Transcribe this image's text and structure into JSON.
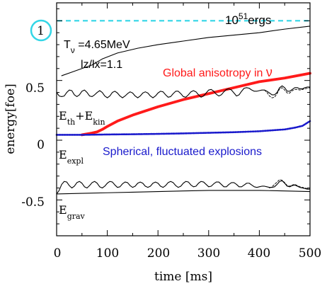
{
  "chart_data": {
    "type": "line",
    "xlabel": "time [ms]",
    "ylabel": "energy[foe]",
    "xlim": [
      0,
      500
    ],
    "ylim": [
      -0.8,
      1.15
    ],
    "x_ticks": [
      0,
      100,
      200,
      300,
      400,
      500
    ],
    "y_ticks": [
      {
        "value": 1,
        "label": "1"
      },
      {
        "value": 0.5,
        "label": "0.5"
      },
      {
        "value": 0,
        "label": "0"
      },
      {
        "value": -0.5,
        "label": "-0.5"
      }
    ],
    "grid": false,
    "legend": "none",
    "colors": {
      "reference": "#33d6e6",
      "anisotropy": "#ff1a1a",
      "spherical": "#1a1acc",
      "black": "#000000"
    },
    "reference_line": {
      "value": 1.0,
      "label_base": "10",
      "label_exp": "51",
      "label_unit": "ergs"
    },
    "annotations": {
      "t_nu_main": "T",
      "t_nu_sub": "ν",
      "t_nu_value": " =4.65MeV",
      "lz_lx": "lz/lx=1.1",
      "global_text": "Global anisotropy in ",
      "global_nu": "ν",
      "spherical_text": "Spherical, fluctuated explosions",
      "eth_main": "E",
      "eth_sub1": "th",
      "eth_plus": "+E",
      "eth_sub2": "kin",
      "eexpl_main": "E",
      "eexpl_sub": "expl",
      "egrav_main": "E",
      "egrav_sub": "grav"
    },
    "series": [
      {
        "key": "upper",
        "values": [
          [
            10,
            0.54
          ],
          [
            30,
            0.57
          ],
          [
            50,
            0.6
          ],
          [
            70,
            0.63
          ],
          [
            90,
            0.68
          ],
          [
            120,
            0.73
          ],
          [
            160,
            0.77
          ],
          [
            200,
            0.8
          ],
          [
            250,
            0.83
          ],
          [
            300,
            0.86
          ],
          [
            350,
            0.88
          ],
          [
            400,
            0.9
          ],
          [
            450,
            0.93
          ],
          [
            500,
            0.955
          ]
        ]
      },
      {
        "key": "anisotropy",
        "values": [
          [
            50,
            0.045
          ],
          [
            70,
            0.06
          ],
          [
            80,
            0.07
          ],
          [
            90,
            0.09
          ],
          [
            100,
            0.115
          ],
          [
            120,
            0.16
          ],
          [
            150,
            0.21
          ],
          [
            200,
            0.28
          ],
          [
            250,
            0.34
          ],
          [
            300,
            0.39
          ],
          [
            350,
            0.44
          ],
          [
            400,
            0.49
          ],
          [
            450,
            0.52
          ],
          [
            500,
            0.56
          ]
        ]
      },
      {
        "key": "spherical",
        "values": [
          [
            0,
            0.045
          ],
          [
            50,
            0.045
          ],
          [
            100,
            0.048
          ],
          [
            150,
            0.05
          ],
          [
            200,
            0.053
          ],
          [
            250,
            0.057
          ],
          [
            300,
            0.062
          ],
          [
            350,
            0.067
          ],
          [
            400,
            0.075
          ],
          [
            450,
            0.09
          ],
          [
            470,
            0.105
          ],
          [
            485,
            0.12
          ],
          [
            500,
            0.16
          ]
        ]
      },
      {
        "key": "eth_ekin",
        "values": [
          [
            0,
            0.4
          ],
          [
            5,
            0.37
          ],
          [
            10,
            0.365
          ],
          [
            15,
            0.37
          ],
          [
            20,
            0.4
          ],
          [
            25,
            0.42
          ],
          [
            30,
            0.415
          ],
          [
            35,
            0.38
          ],
          [
            40,
            0.365
          ],
          [
            45,
            0.38
          ],
          [
            50,
            0.41
          ],
          [
            55,
            0.42
          ],
          [
            60,
            0.4
          ],
          [
            65,
            0.37
          ],
          [
            70,
            0.365
          ],
          [
            75,
            0.38
          ],
          [
            80,
            0.4
          ],
          [
            85,
            0.415
          ],
          [
            90,
            0.4
          ],
          [
            95,
            0.37
          ],
          [
            100,
            0.355
          ],
          [
            105,
            0.37
          ],
          [
            110,
            0.4
          ],
          [
            115,
            0.41
          ],
          [
            120,
            0.395
          ],
          [
            125,
            0.37
          ],
          [
            130,
            0.355
          ],
          [
            135,
            0.37
          ],
          [
            140,
            0.39
          ],
          [
            145,
            0.405
          ],
          [
            150,
            0.395
          ],
          [
            155,
            0.37
          ],
          [
            160,
            0.355
          ],
          [
            165,
            0.37
          ],
          [
            170,
            0.395
          ],
          [
            175,
            0.405
          ],
          [
            180,
            0.395
          ],
          [
            185,
            0.37
          ],
          [
            190,
            0.355
          ],
          [
            195,
            0.37
          ],
          [
            200,
            0.395
          ],
          [
            205,
            0.41
          ],
          [
            210,
            0.405
          ],
          [
            215,
            0.38
          ],
          [
            220,
            0.36
          ],
          [
            225,
            0.365
          ],
          [
            230,
            0.39
          ],
          [
            235,
            0.41
          ],
          [
            240,
            0.41
          ],
          [
            245,
            0.39
          ],
          [
            250,
            0.365
          ],
          [
            255,
            0.36
          ],
          [
            260,
            0.38
          ],
          [
            265,
            0.405
          ],
          [
            270,
            0.415
          ],
          [
            275,
            0.405
          ],
          [
            280,
            0.38
          ],
          [
            285,
            0.36
          ],
          [
            290,
            0.37
          ],
          [
            295,
            0.395
          ],
          [
            300,
            0.42
          ],
          [
            305,
            0.425
          ],
          [
            310,
            0.41
          ],
          [
            315,
            0.385
          ],
          [
            320,
            0.37
          ],
          [
            325,
            0.38
          ],
          [
            330,
            0.405
          ],
          [
            335,
            0.425
          ],
          [
            340,
            0.43
          ],
          [
            345,
            0.42
          ],
          [
            350,
            0.395
          ],
          [
            355,
            0.37
          ],
          [
            360,
            0.38
          ],
          [
            365,
            0.41
          ],
          [
            370,
            0.435
          ],
          [
            375,
            0.44
          ],
          [
            380,
            0.435
          ],
          [
            385,
            0.42
          ],
          [
            390,
            0.41
          ],
          [
            395,
            0.41
          ],
          [
            400,
            0.415
          ],
          [
            405,
            0.42
          ],
          [
            410,
            0.42
          ],
          [
            415,
            0.41
          ],
          [
            420,
            0.395
          ],
          [
            425,
            0.38
          ],
          [
            430,
            0.38
          ],
          [
            435,
            0.4
          ],
          [
            440,
            0.44
          ],
          [
            445,
            0.455
          ],
          [
            450,
            0.44
          ],
          [
            455,
            0.41
          ],
          [
            460,
            0.41
          ],
          [
            465,
            0.425
          ],
          [
            470,
            0.44
          ],
          [
            475,
            0.44
          ],
          [
            480,
            0.43
          ],
          [
            485,
            0.43
          ],
          [
            490,
            0.44
          ],
          [
            495,
            0.445
          ],
          [
            500,
            0.445
          ]
        ]
      },
      {
        "key": "eth_ekin_alt",
        "values": [
          [
            410,
            0.42
          ],
          [
            415,
            0.4
          ],
          [
            420,
            0.37
          ],
          [
            425,
            0.355
          ],
          [
            430,
            0.36
          ],
          [
            435,
            0.39
          ],
          [
            440,
            0.43
          ],
          [
            445,
            0.44
          ],
          [
            450,
            0.42
          ],
          [
            455,
            0.395
          ],
          [
            460,
            0.395
          ],
          [
            465,
            0.415
          ],
          [
            470,
            0.425
          ],
          [
            475,
            0.425
          ],
          [
            480,
            0.42
          ],
          [
            490,
            0.43
          ],
          [
            500,
            0.44
          ]
        ]
      },
      {
        "key": "egrav",
        "values": [
          [
            0,
            -0.45
          ],
          [
            5,
            -0.42
          ],
          [
            10,
            -0.37
          ],
          [
            15,
            -0.345
          ],
          [
            20,
            -0.35
          ],
          [
            25,
            -0.38
          ],
          [
            30,
            -0.4
          ],
          [
            35,
            -0.385
          ],
          [
            40,
            -0.355
          ],
          [
            45,
            -0.345
          ],
          [
            50,
            -0.36
          ],
          [
            55,
            -0.39
          ],
          [
            60,
            -0.4
          ],
          [
            65,
            -0.38
          ],
          [
            70,
            -0.355
          ],
          [
            75,
            -0.345
          ],
          [
            80,
            -0.36
          ],
          [
            85,
            -0.39
          ],
          [
            90,
            -0.4
          ],
          [
            95,
            -0.385
          ],
          [
            100,
            -0.36
          ],
          [
            105,
            -0.345
          ],
          [
            110,
            -0.35
          ],
          [
            115,
            -0.375
          ],
          [
            120,
            -0.395
          ],
          [
            125,
            -0.39
          ],
          [
            130,
            -0.365
          ],
          [
            135,
            -0.35
          ],
          [
            140,
            -0.355
          ],
          [
            145,
            -0.38
          ],
          [
            150,
            -0.395
          ],
          [
            155,
            -0.385
          ],
          [
            160,
            -0.36
          ],
          [
            165,
            -0.35
          ],
          [
            170,
            -0.36
          ],
          [
            175,
            -0.385
          ],
          [
            180,
            -0.395
          ],
          [
            185,
            -0.385
          ],
          [
            190,
            -0.36
          ],
          [
            195,
            -0.35
          ],
          [
            200,
            -0.36
          ],
          [
            205,
            -0.385
          ],
          [
            210,
            -0.395
          ],
          [
            215,
            -0.38
          ],
          [
            220,
            -0.355
          ],
          [
            225,
            -0.345
          ],
          [
            230,
            -0.355
          ],
          [
            235,
            -0.38
          ],
          [
            240,
            -0.395
          ],
          [
            245,
            -0.385
          ],
          [
            250,
            -0.36
          ],
          [
            255,
            -0.345
          ],
          [
            260,
            -0.35
          ],
          [
            265,
            -0.375
          ],
          [
            270,
            -0.39
          ],
          [
            275,
            -0.385
          ],
          [
            280,
            -0.36
          ],
          [
            285,
            -0.345
          ],
          [
            290,
            -0.35
          ],
          [
            295,
            -0.37
          ],
          [
            300,
            -0.39
          ],
          [
            305,
            -0.385
          ],
          [
            310,
            -0.365
          ],
          [
            315,
            -0.35
          ],
          [
            320,
            -0.35
          ],
          [
            325,
            -0.37
          ],
          [
            330,
            -0.39
          ],
          [
            335,
            -0.39
          ],
          [
            340,
            -0.37
          ],
          [
            345,
            -0.355
          ],
          [
            350,
            -0.355
          ],
          [
            355,
            -0.37
          ],
          [
            360,
            -0.39
          ],
          [
            365,
            -0.39
          ],
          [
            370,
            -0.375
          ],
          [
            375,
            -0.36
          ],
          [
            380,
            -0.36
          ],
          [
            385,
            -0.375
          ],
          [
            390,
            -0.39
          ],
          [
            395,
            -0.395
          ],
          [
            400,
            -0.39
          ],
          [
            405,
            -0.385
          ],
          [
            410,
            -0.385
          ],
          [
            415,
            -0.39
          ],
          [
            420,
            -0.395
          ],
          [
            425,
            -0.395
          ],
          [
            430,
            -0.39
          ],
          [
            435,
            -0.37
          ],
          [
            440,
            -0.345
          ],
          [
            445,
            -0.34
          ],
          [
            450,
            -0.36
          ],
          [
            455,
            -0.385
          ],
          [
            460,
            -0.39
          ],
          [
            465,
            -0.38
          ],
          [
            470,
            -0.375
          ],
          [
            475,
            -0.385
          ],
          [
            480,
            -0.395
          ],
          [
            485,
            -0.4
          ],
          [
            490,
            -0.405
          ],
          [
            495,
            -0.41
          ],
          [
            500,
            -0.41
          ]
        ]
      },
      {
        "key": "egrav_alt",
        "values": [
          [
            420,
            -0.4
          ],
          [
            425,
            -0.39
          ],
          [
            430,
            -0.37
          ],
          [
            435,
            -0.35
          ],
          [
            440,
            -0.33
          ],
          [
            445,
            -0.335
          ],
          [
            450,
            -0.355
          ],
          [
            455,
            -0.38
          ],
          [
            460,
            -0.385
          ],
          [
            465,
            -0.375
          ],
          [
            470,
            -0.37
          ],
          [
            475,
            -0.38
          ],
          [
            480,
            -0.39
          ],
          [
            490,
            -0.4
          ],
          [
            500,
            -0.41
          ]
        ]
      },
      {
        "key": "lower_smooth",
        "values": [
          [
            0,
            -0.45
          ],
          [
            50,
            -0.445
          ],
          [
            100,
            -0.44
          ],
          [
            150,
            -0.435
          ],
          [
            200,
            -0.43
          ],
          [
            250,
            -0.425
          ],
          [
            300,
            -0.42
          ],
          [
            350,
            -0.42
          ],
          [
            400,
            -0.42
          ],
          [
            450,
            -0.425
          ],
          [
            500,
            -0.43
          ]
        ]
      }
    ]
  }
}
